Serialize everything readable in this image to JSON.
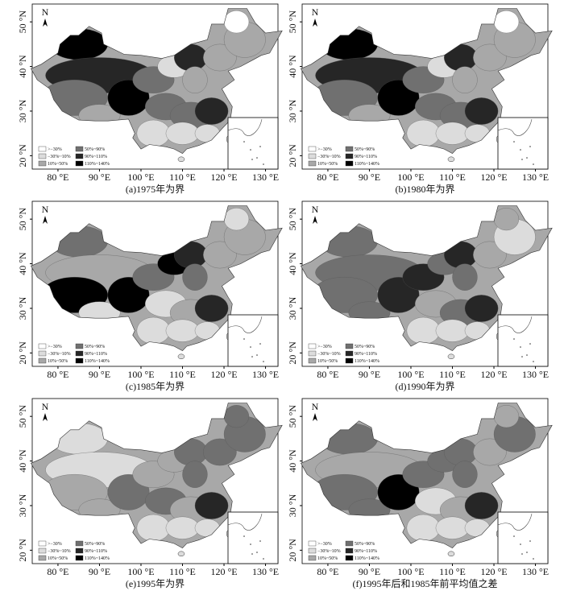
{
  "north_label": "N",
  "x_ticks": [
    {
      "value": 80,
      "label": "80 °E"
    },
    {
      "value": 90,
      "label": "90 °E"
    },
    {
      "value": 100,
      "label": "100 °E"
    },
    {
      "value": 110,
      "label": "110 °E"
    },
    {
      "value": 120,
      "label": "120 °E"
    },
    {
      "value": 130,
      "label": "130 °E"
    }
  ],
  "y_ticks": [
    {
      "value": 20,
      "label": "20 °N"
    },
    {
      "value": 30,
      "label": "30 °N"
    },
    {
      "value": 40,
      "label": "40 °N"
    },
    {
      "value": 50,
      "label": "50 °N"
    }
  ],
  "legend": [
    {
      "label": ">−30%",
      "color": "#ffffff"
    },
    {
      "label": "−30%~10%",
      "color": "#dcdcdc"
    },
    {
      "label": "10%~50%",
      "color": "#a8a8a8"
    },
    {
      "label": "50%~90%",
      "color": "#707070"
    },
    {
      "label": "90%~110%",
      "color": "#262626"
    },
    {
      "label": "110%~140%",
      "color": "#000000"
    }
  ],
  "panels": [
    {
      "caption": "(a)1975年为界"
    },
    {
      "caption": "(b)1980年为界"
    },
    {
      "caption": "(c)1985年为界"
    },
    {
      "caption": "(d)1990年为界"
    },
    {
      "caption": "(e)1995年为界"
    },
    {
      "caption": "(f)1995年后和1985年前平均值之差"
    }
  ]
}
